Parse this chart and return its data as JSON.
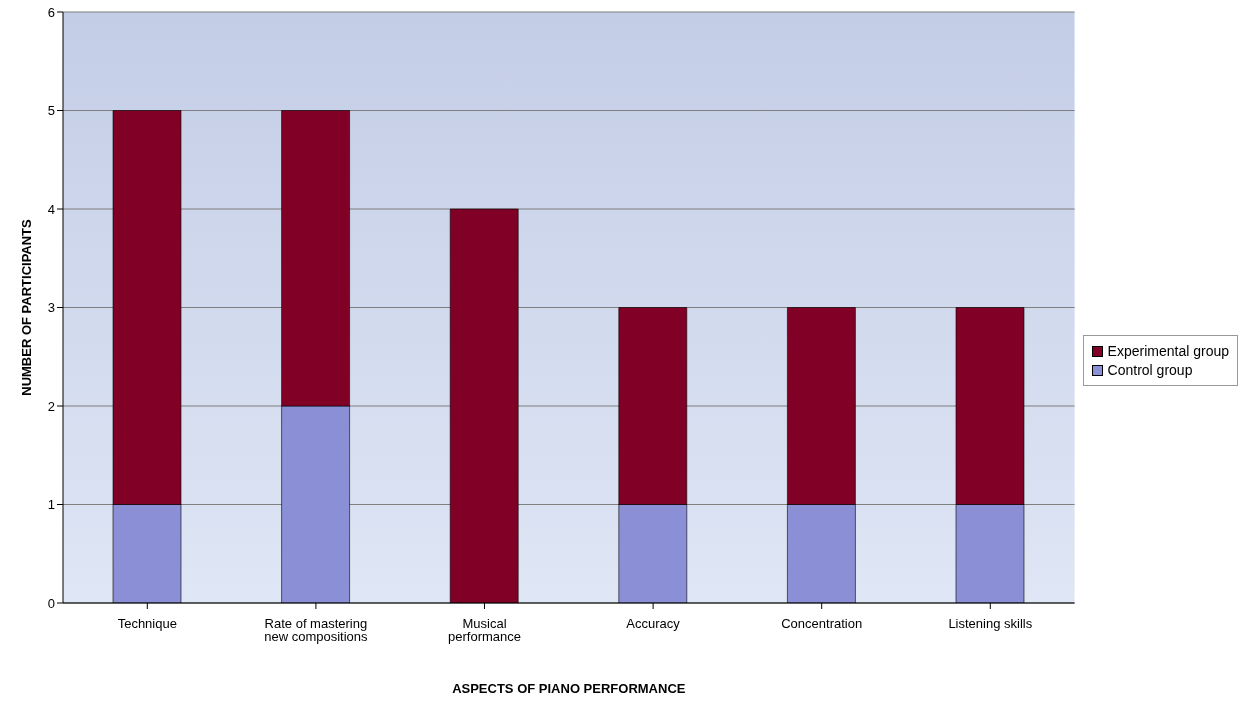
{
  "chart_data": {
    "type": "bar",
    "stacked": true,
    "xlabel": "ASPECTS OF PIANO PERFORMANCE",
    "ylabel": "NUMBER OF PARTICIPANTS",
    "categories": [
      "Technique",
      "Rate of mastering new compositions",
      "Musical performance",
      "Accuracy",
      "Concentration",
      "Listening skills"
    ],
    "series": [
      {
        "name": "Control group",
        "color": "#8a8fd6",
        "values": [
          1,
          2,
          0,
          1,
          1,
          1
        ]
      },
      {
        "name": "Experimental group",
        "color": "#800026",
        "values": [
          4,
          3,
          4,
          2,
          2,
          2
        ]
      }
    ],
    "ylim": [
      0,
      6
    ],
    "yticks": [
      0,
      1,
      2,
      3,
      4,
      5,
      6
    ],
    "grid": "y",
    "legend": "right"
  }
}
